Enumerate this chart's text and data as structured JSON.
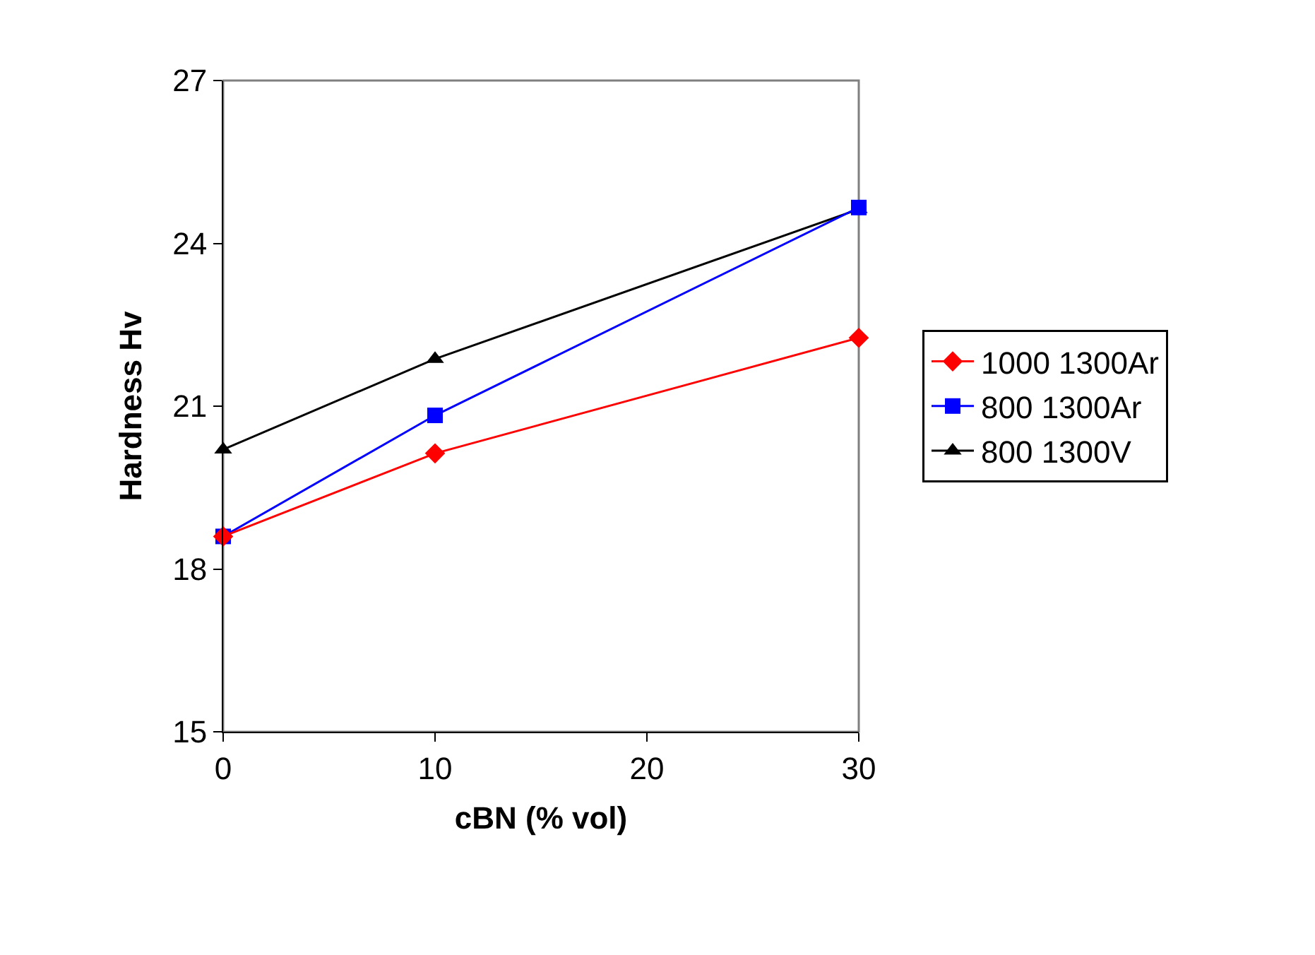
{
  "chart_data": {
    "type": "line",
    "xlabel": "cBN (% vol)",
    "ylabel": "Hardness Hv",
    "x": [
      0,
      10,
      30
    ],
    "series": [
      {
        "name": "1000 1300Ar",
        "color": "#ff0000",
        "marker": "diamond",
        "values": [
          18.6,
          20.13,
          22.26
        ]
      },
      {
        "name": "800 1300Ar",
        "color": "#0000ff",
        "marker": "square",
        "values": [
          18.6,
          20.83,
          24.66
        ]
      },
      {
        "name": "800 1300V",
        "color": "#000000",
        "marker": "triangle",
        "values": [
          20.2,
          21.87,
          24.63
        ]
      }
    ],
    "xlim": [
      0,
      30
    ],
    "xticks": [
      0,
      10,
      20,
      30
    ],
    "ylim": [
      15,
      27
    ],
    "yticks": [
      15,
      18,
      21,
      24,
      27
    ],
    "grid": false,
    "legend": "right",
    "line_style": "solid"
  }
}
